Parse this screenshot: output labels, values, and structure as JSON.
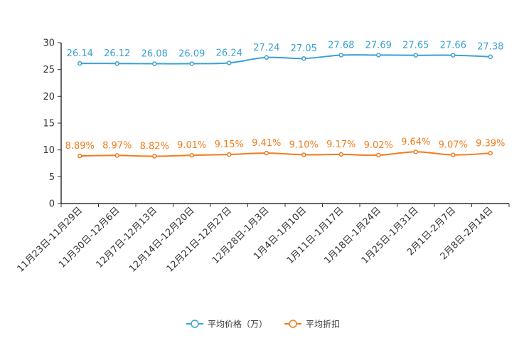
{
  "chart_data": {
    "type": "line",
    "title": "",
    "xlabel": "",
    "ylabel": "",
    "ylim": [
      0,
      30
    ],
    "yticks": [
      0,
      5,
      10,
      15,
      20,
      25,
      30
    ],
    "grid": false,
    "legend_position": "bottom-center",
    "categories": [
      "11月23日-11月29日",
      "11月30日-12月6日",
      "12月7日-12月13日",
      "12月14日-12月20日",
      "12月21日-12月27日",
      "12月28日-1月3日",
      "1月4日-1月10日",
      "1月11日-1月17日",
      "1月18日-1月24日",
      "1月25日-1月31日",
      "2月1日-2月7日",
      "2月8日-2月14日"
    ],
    "series": [
      {
        "name": "平均价格（万）",
        "color": "#3ba1d3",
        "values": [
          26.14,
          26.12,
          26.08,
          26.09,
          26.24,
          27.24,
          27.05,
          27.68,
          27.69,
          27.65,
          27.66,
          27.38
        ],
        "labels": [
          "26.14",
          "26.12",
          "26.08",
          "26.09",
          "26.24",
          "27.24",
          "27.05",
          "27.68",
          "27.69",
          "27.65",
          "27.66",
          "27.38"
        ]
      },
      {
        "name": "平均折扣",
        "color": "#f07c1c",
        "values": [
          8.89,
          8.97,
          8.82,
          9.01,
          9.15,
          9.41,
          9.1,
          9.17,
          9.02,
          9.64,
          9.07,
          9.39
        ],
        "labels": [
          "8.89%",
          "8.97%",
          "8.82%",
          "9.01%",
          "9.15%",
          "9.41%",
          "9.10%",
          "9.17%",
          "9.02%",
          "9.64%",
          "9.07%",
          "9.39%"
        ]
      }
    ]
  }
}
